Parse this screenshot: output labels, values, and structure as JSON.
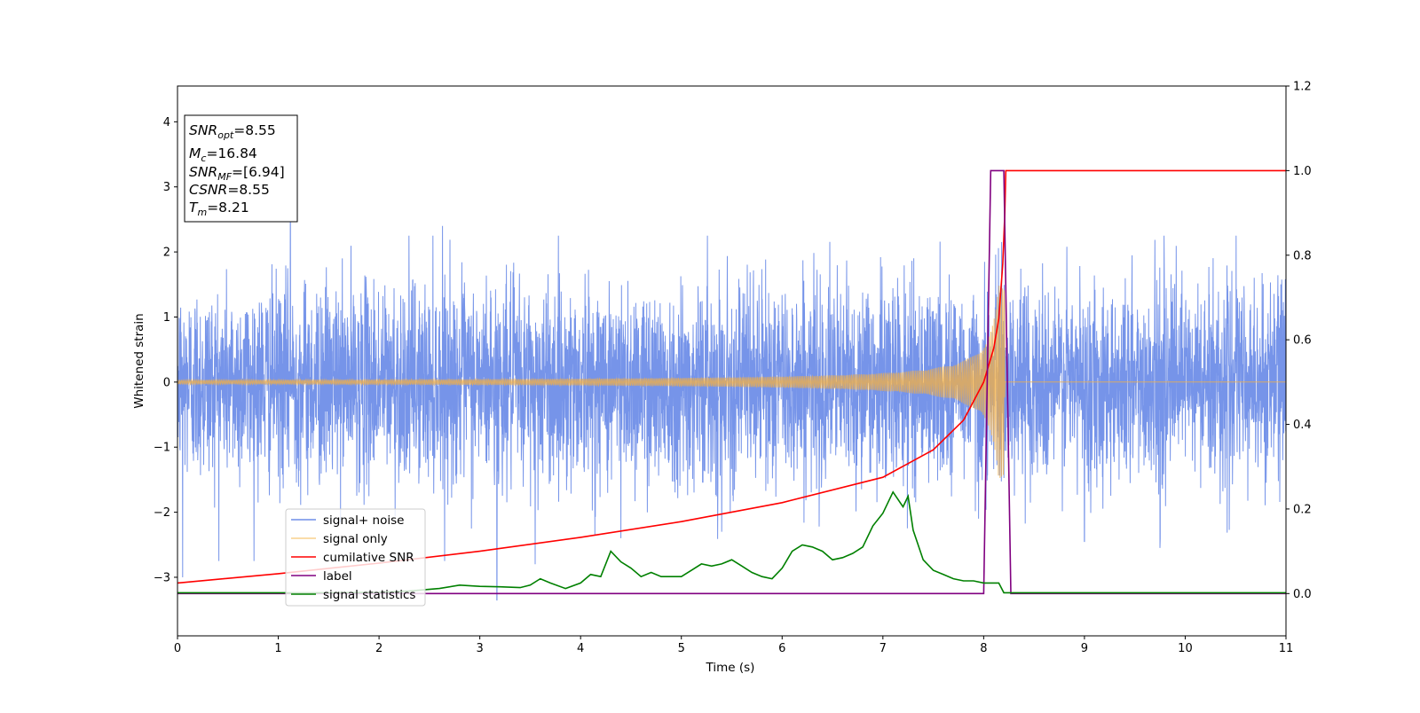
{
  "chart_data": {
    "type": "line",
    "xlabel": "Time (s)",
    "ylabel": "Whitened strain",
    "xlim": [
      0,
      11
    ],
    "ylim_left": [
      -3.9,
      4.55
    ],
    "ylim_right": [
      -0.1,
      1.2
    ],
    "x_ticks": [
      "0",
      "1",
      "2",
      "3",
      "4",
      "5",
      "6",
      "7",
      "8",
      "9",
      "10",
      "11"
    ],
    "y_ticks_left": [
      "−3",
      "−2",
      "−1",
      "0",
      "1",
      "2",
      "3",
      "4"
    ],
    "y_ticks_right": [
      "0.0",
      "0.2",
      "0.4",
      "0.6",
      "0.8",
      "1.0",
      "1.2"
    ],
    "grid": false,
    "legend_position": "lower-left",
    "colors": {
      "signal_noise": "#6f8ee8",
      "signal_only": "#f5b041",
      "cumulative_snr": "#ff0000",
      "label": "#800080",
      "signal_statistics": "#008000"
    },
    "series": [
      {
        "name": "signal+ noise",
        "axis": "left",
        "description_stats": {
          "std": 0.75,
          "min": -3.35,
          "max": 2.45,
          "spikes": [
            [
              0.05,
              -3.0
            ],
            [
              1.12,
              2.45
            ],
            [
              2.63,
              2.4
            ],
            [
              3.17,
              -3.35
            ],
            [
              3.55,
              -2.8
            ],
            [
              4.4,
              -2.4
            ],
            [
              5.4,
              -2.3
            ],
            [
              7.95,
              -2.1
            ],
            [
              9.0,
              -2.45
            ],
            [
              9.75,
              -2.55
            ]
          ]
        }
      },
      {
        "name": "signal only",
        "axis": "left",
        "envelope": {
          "t_start": 0,
          "t_merger": 8.21,
          "amp_start": 0.03,
          "amp_peak": 1.5
        }
      },
      {
        "name": "cumilative SNR",
        "axis": "right",
        "x": [
          0,
          1,
          2,
          3,
          4,
          5,
          6,
          7,
          7.5,
          7.8,
          8.0,
          8.1,
          8.15,
          8.19,
          8.21,
          8.22,
          11
        ],
        "y": [
          0.025,
          0.047,
          0.072,
          0.1,
          0.133,
          0.17,
          0.215,
          0.275,
          0.34,
          0.41,
          0.5,
          0.58,
          0.65,
          0.78,
          0.9,
          1.0,
          1.0
        ]
      },
      {
        "name": "label",
        "axis": "right",
        "x": [
          0,
          8.0,
          8.07,
          8.2,
          8.27,
          11
        ],
        "y": [
          0,
          0,
          1,
          1,
          0,
          0
        ]
      },
      {
        "name": "signal statistics",
        "axis": "right",
        "x": [
          0,
          0.5,
          1,
          1.5,
          2,
          2.3,
          2.6,
          2.8,
          3.0,
          3.2,
          3.4,
          3.5,
          3.6,
          3.7,
          3.85,
          4.0,
          4.1,
          4.2,
          4.3,
          4.4,
          4.5,
          4.6,
          4.7,
          4.8,
          4.9,
          5.0,
          5.1,
          5.2,
          5.3,
          5.4,
          5.5,
          5.6,
          5.7,
          5.8,
          5.9,
          6.0,
          6.1,
          6.2,
          6.3,
          6.4,
          6.5,
          6.6,
          6.7,
          6.8,
          6.9,
          7.0,
          7.1,
          7.2,
          7.25,
          7.3,
          7.4,
          7.5,
          7.6,
          7.7,
          7.8,
          7.9,
          8.0,
          8.1,
          8.15,
          8.2,
          8.3,
          8.5,
          9.0,
          9.5,
          10.0,
          11.0
        ],
        "y": [
          0.002,
          0.002,
          0.002,
          0.002,
          0.003,
          0.006,
          0.012,
          0.02,
          0.017,
          0.016,
          0.014,
          0.02,
          0.035,
          0.025,
          0.012,
          0.025,
          0.045,
          0.04,
          0.1,
          0.075,
          0.06,
          0.04,
          0.05,
          0.04,
          0.04,
          0.04,
          0.055,
          0.07,
          0.065,
          0.07,
          0.08,
          0.065,
          0.05,
          0.04,
          0.035,
          0.06,
          0.1,
          0.115,
          0.11,
          0.1,
          0.08,
          0.085,
          0.095,
          0.11,
          0.16,
          0.19,
          0.24,
          0.205,
          0.23,
          0.15,
          0.08,
          0.055,
          0.045,
          0.035,
          0.03,
          0.03,
          0.025,
          0.025,
          0.025,
          0.002,
          0.002,
          0.002,
          0.002,
          0.002,
          0.002,
          0.002
        ]
      }
    ],
    "legend": [
      "signal+ noise",
      "signal only",
      "cumilative SNR",
      "label",
      "signal statistics"
    ],
    "info_box": {
      "snr_opt": {
        "base": "SNR",
        "sub": "opt",
        "value": "=8.55"
      },
      "mc": {
        "base": "M",
        "sub": "c",
        "value": "=16.84"
      },
      "snr_mf": {
        "base": "SNR",
        "sub": "MF",
        "value": "=[6.94]"
      },
      "csnr": {
        "base": "CSNR",
        "value": "=8.55"
      },
      "tm": {
        "base": "T",
        "sub": "m",
        "value": "=8.21"
      }
    }
  }
}
